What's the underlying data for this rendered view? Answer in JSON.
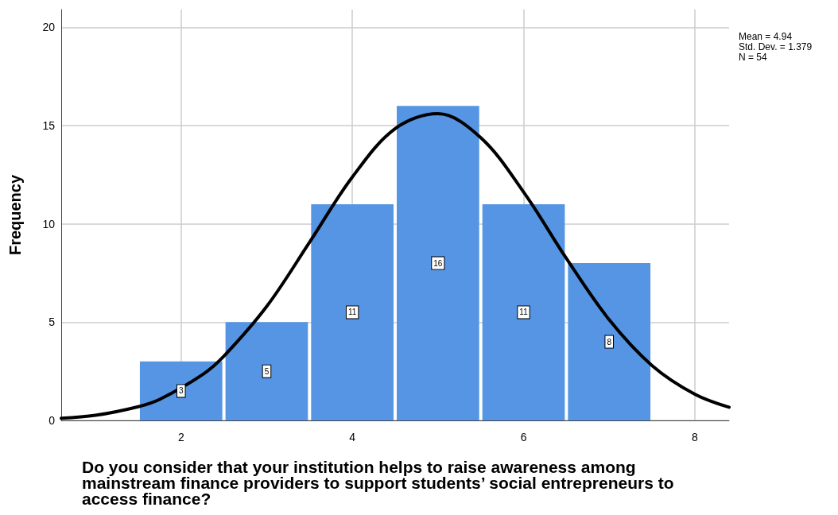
{
  "chart_data": {
    "type": "histogram",
    "xlabel": "Do you consider that your institution helps to raise awareness among mainstream finance providers to support students’ social entrepreneurs to access finance?",
    "ylabel": "Frequency",
    "bins": [
      1.5,
      2.5,
      3.5,
      4.5,
      5.5,
      6.5,
      7.5
    ],
    "values": [
      3,
      5,
      11,
      16,
      11,
      8
    ],
    "color": "#5595e3",
    "value_labels": [
      "3",
      "5",
      "11",
      "16",
      "11",
      "8"
    ],
    "series": [
      {
        "type": "line",
        "color": "#000000",
        "x": [
          0.6,
          1,
          1.5,
          1.75,
          2.25,
          2.5,
          3,
          3.5,
          4,
          4.5,
          5,
          5.5,
          6,
          6.5,
          7,
          7.5,
          8,
          8.4
        ],
        "values": [
          0.11,
          0.26,
          0.7,
          1.07,
          2.33,
          3.27,
          5.8,
          9.06,
          12.38,
          14.84,
          15.6,
          14.38,
          11.62,
          8.24,
          5.12,
          2.79,
          1.33,
          0.67
        ]
      }
    ],
    "marker": "none",
    "line_style": "solid",
    "xlim": [
      0.6,
      8.4
    ],
    "xticks": [
      2,
      4,
      6,
      8
    ],
    "ylim": [
      0,
      20.9
    ],
    "yticks": [
      0,
      5,
      10,
      15,
      20
    ],
    "grid": true,
    "annotations": [
      "Mean = 4.94",
      "Std. Dev. = 1.379",
      "N = 54"
    ]
  }
}
